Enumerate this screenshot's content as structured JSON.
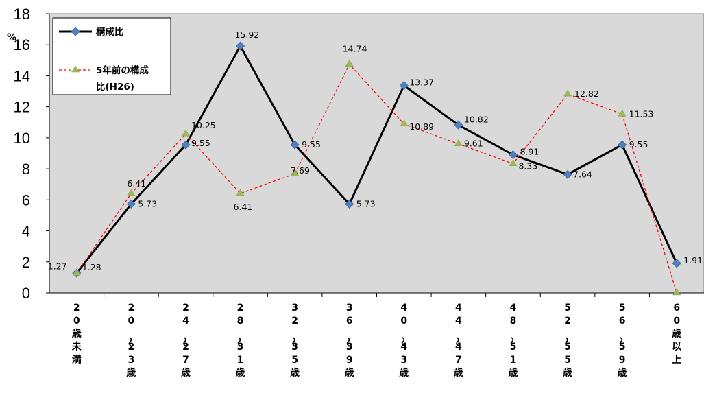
{
  "chart_data": {
    "type": "line",
    "unit_label": "%",
    "categories": [
      "20歳未満",
      "20～23歳",
      "24～27歳",
      "28～31歳",
      "32～35歳",
      "36～39歳",
      "40～43歳",
      "44～47歳",
      "48～51歳",
      "52～55歳",
      "56～59歳",
      "60歳以上"
    ],
    "ylim": [
      0,
      18
    ],
    "yticks": [
      0,
      2,
      4,
      6,
      8,
      10,
      12,
      14,
      16,
      18
    ],
    "grid": false,
    "background": "#d9d9d9",
    "legend": {
      "placement": "top-left",
      "entries": [
        "構成比",
        "5年前の構成",
        "比(H26)"
      ]
    },
    "series": [
      {
        "name": "構成比",
        "color": "#000000",
        "marker": "diamond",
        "marker_color": "#4f81bd",
        "values": [
          1.28,
          5.73,
          9.55,
          15.92,
          9.55,
          5.73,
          13.37,
          10.82,
          8.91,
          7.64,
          9.55,
          1.91
        ],
        "labels": [
          "1.28",
          "5.73",
          "9.55",
          "15.92",
          "9.55",
          "5.73",
          "13.37",
          "10.82",
          "8.91",
          "7.64",
          "9.55",
          "1.91"
        ]
      },
      {
        "name": "5年前の構成比(H26)",
        "color": "#ff0000",
        "marker": "triangle",
        "marker_color": "#9bbb59",
        "values": [
          1.27,
          6.41,
          10.25,
          6.41,
          7.69,
          14.74,
          10.89,
          9.61,
          8.33,
          12.82,
          11.53,
          0
        ],
        "labels": [
          "1.27",
          "6.41",
          "10.25",
          "6.41",
          "7.69",
          "14.74",
          "10.89",
          "9.61",
          "8.33",
          "12.82",
          "11.53",
          ""
        ]
      }
    ]
  }
}
